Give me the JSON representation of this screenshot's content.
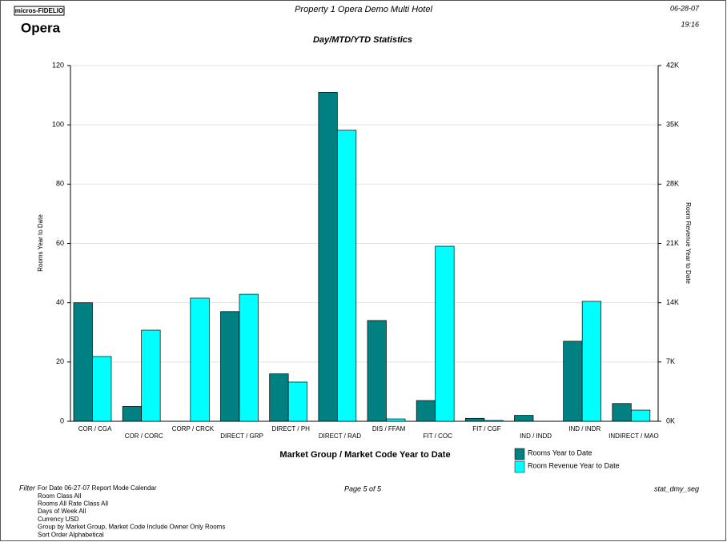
{
  "header": {
    "logo_brand": "micros-FIDELIO",
    "logo_product": "Opera",
    "property": "Property 1 Opera Demo Multi Hotel",
    "date": "06-28-07",
    "time": "19:16",
    "report_title": "Day/MTD/YTD Statistics"
  },
  "chart_data": {
    "type": "bar",
    "xlabel": "Market Group / Market Code Year to Date",
    "ylabel": "Rooms Year to Date",
    "y2label": "Room Revenue Year to Date",
    "categories": [
      "COR / CGA",
      "COR / CORC",
      "CORP / CRCK",
      "DIRECT / GRP",
      "DIRECT / PH",
      "DIRECT / RAD",
      "DIS / FFAM",
      "FIT / COC",
      "FIT / CGF",
      "IND / INDD",
      "IND / INDR",
      "INDIRECT / MAO"
    ],
    "series": [
      {
        "name": "Rooms Year to Date",
        "color": "#008080",
        "values": [
          40,
          5,
          0,
          37,
          16,
          111,
          34,
          7,
          1,
          2,
          27,
          6
        ]
      },
      {
        "name": "Room Revenue Year to Date",
        "color": "#00ffff",
        "axis": "y2",
        "values": [
          7650,
          10760,
          14540,
          15000,
          4630,
          34360,
          280,
          20670,
          100,
          0,
          14160,
          1320
        ]
      }
    ],
    "ylim": [
      0,
      120
    ],
    "yticks": [
      0,
      20,
      40,
      60,
      80,
      100,
      120
    ],
    "y2lim": [
      0,
      42000
    ],
    "y2ticks": [
      {
        "value": 0,
        "label": "0K"
      },
      {
        "value": 7000,
        "label": "7K"
      },
      {
        "value": 14000,
        "label": "14K"
      },
      {
        "value": 21000,
        "label": "21K"
      },
      {
        "value": 28000,
        "label": "28K"
      },
      {
        "value": 35000,
        "label": "35K"
      },
      {
        "value": 42000,
        "label": "42K"
      }
    ],
    "grid": true,
    "legend": "bottom-right"
  },
  "footer": {
    "filter_label": "Filter",
    "filter_lines": [
      "For Date 06-27-07   Report Mode Calendar",
      "Room Class All",
      "Rooms All   Rate Class All",
      "Days of Week All",
      "Currency USD",
      "Group by Market Group, Market Code    Include Owner Only Rooms",
      "Sort Order Alphabetical"
    ],
    "page": "Page 5 of 5",
    "report_code": "stat_dmy_seg"
  }
}
